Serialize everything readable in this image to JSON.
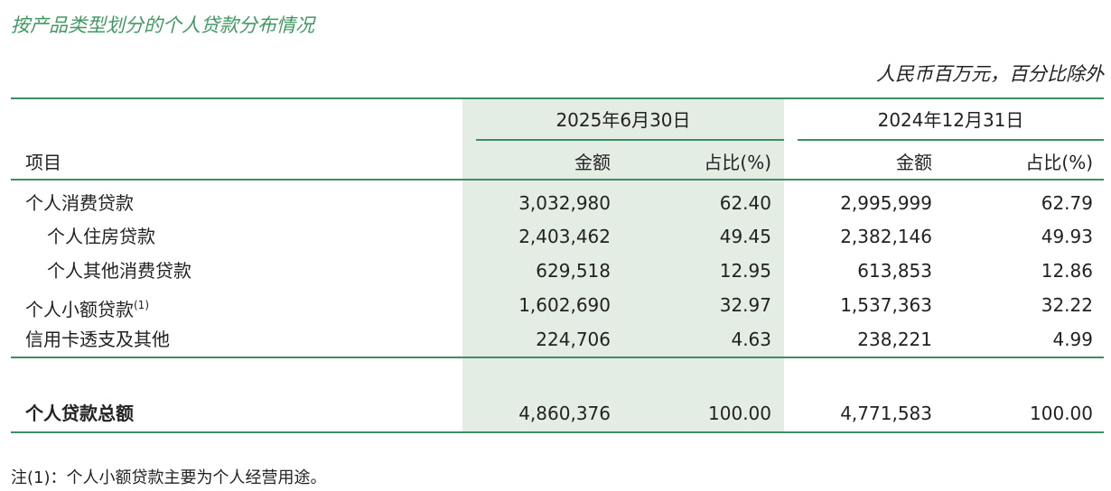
{
  "header": {
    "title": "按产品类型划分的个人贷款分布情况",
    "unit": "人民币百万元，百分比除外"
  },
  "table": {
    "periods": [
      "2025年6月30日",
      "2024年12月31日"
    ],
    "columns": [
      "项目",
      "金额",
      "占比(%)",
      "金额",
      "占比(%)"
    ],
    "rows": [
      {
        "label": "个人消费贷款",
        "cells": [
          "3,032,980",
          "62.40",
          "2,995,999",
          "62.79"
        ]
      },
      {
        "label": "个人住房贷款",
        "cells": [
          "2,403,462",
          "49.45",
          "2,382,146",
          "49.93"
        ]
      },
      {
        "label": "个人其他消费贷款",
        "cells": [
          "629,518",
          "12.95",
          "613,853",
          "12.86"
        ]
      },
      {
        "label": "个人小额贷款",
        "note": "(1)",
        "cells": [
          "1,602,690",
          "32.97",
          "1,537,363",
          "32.22"
        ]
      },
      {
        "label": "信用卡透支及其他",
        "cells": [
          "224,706",
          "4.63",
          "238,221",
          "4.99"
        ]
      }
    ],
    "total": {
      "label": "个人贷款总额",
      "cells": [
        "4,860,376",
        "100.00",
        "4,771,583",
        "100.00"
      ]
    }
  },
  "footnote": "注(1)：个人小额贷款主要为个人经营用途。"
}
